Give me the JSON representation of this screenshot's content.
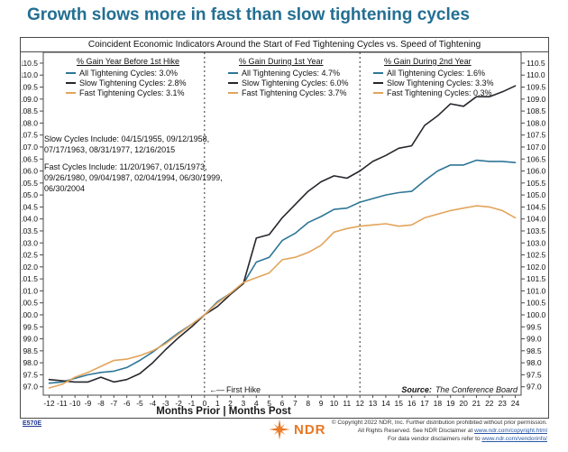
{
  "page": {
    "title": "Growth slows more in fast than slow tightening cycles"
  },
  "colors": {
    "title_teal": "#236f92",
    "all_line": "#2e7696",
    "slow_line": "#26262c",
    "fast_line": "#e2a45a",
    "logo_orange": "#e87722",
    "link_blue": "#2857a4"
  },
  "chart": {
    "subtitle": "Coincident Economic Indicators Around the Start of Fed Tightening Cycles vs. Speed of Tightening",
    "xlabel": "Months Prior | Months Post",
    "first_hike_arrow": "←—",
    "first_hike": "First Hike",
    "source_label": "Source:",
    "source_value": "The Conference Board",
    "annotations": {
      "slow_cycles": "Slow Cycles Include: 04/15/1955, 09/12/1958, 07/17/1963, 08/31/1977, 12/16/2015",
      "fast_cycles": "Fast Cycles Include: 11/20/1967, 01/15/1973, 09/26/1980, 09/04/1987, 02/04/1994, 06/30/1999, 06/30/2004"
    },
    "legends": [
      {
        "title": "% Gain Year Before 1st Hike",
        "entries": [
          {
            "label": "All Tightening Cycles: 3.0%",
            "color": "#2e7696"
          },
          {
            "label": "Slow Tightening Cycles: 2.8%",
            "color": "#26262c"
          },
          {
            "label": "Fast Tightening Cycles: 3.1%",
            "color": "#e2a45a"
          }
        ]
      },
      {
        "title": "% Gain During 1st Year",
        "entries": [
          {
            "label": "All Tightening Cycles: 4.7%",
            "color": "#2e7696"
          },
          {
            "label": "Slow Tightening Cycles: 6.0%",
            "color": "#26262c"
          },
          {
            "label": "Fast Tightening Cycles: 3.7%",
            "color": "#e2a45a"
          }
        ]
      },
      {
        "title": "% Gain During 2nd Year",
        "entries": [
          {
            "label": "All Tightening Cycles: 1.6%",
            "color": "#2e7696"
          },
          {
            "label": "Slow Tightening Cycles: 3.3%",
            "color": "#26262c"
          },
          {
            "label": "Fast Tightening Cycles: 0.3%",
            "color": "#e2a45a"
          }
        ]
      }
    ]
  },
  "chart_data": {
    "type": "line",
    "title": "Coincident Economic Indicators Around the Start of Fed Tightening Cycles vs. Speed of Tightening",
    "xlabel": "Months Prior | Months Post",
    "x": [
      -12,
      -11,
      -10,
      -9,
      -8,
      -7,
      -6,
      -5,
      -4,
      -3,
      -2,
      -1,
      0,
      1,
      2,
      3,
      4,
      5,
      6,
      7,
      8,
      9,
      10,
      11,
      12,
      13,
      14,
      15,
      16,
      17,
      18,
      19,
      20,
      21,
      22,
      23,
      24
    ],
    "series": [
      {
        "name": "All Tightening Cycles",
        "color": "#2e7696",
        "values": [
          97.15,
          97.2,
          97.35,
          97.5,
          97.6,
          97.65,
          97.8,
          98.1,
          98.45,
          98.85,
          99.25,
          99.6,
          100.0,
          100.55,
          100.9,
          101.3,
          102.2,
          102.4,
          103.1,
          103.4,
          103.85,
          104.1,
          104.4,
          104.45,
          104.7,
          104.85,
          105.0,
          105.1,
          105.15,
          105.6,
          106.0,
          106.25,
          106.25,
          106.45,
          106.4,
          106.4,
          106.35
        ]
      },
      {
        "name": "Slow Tightening Cycles",
        "color": "#26262c",
        "values": [
          97.3,
          97.25,
          97.2,
          97.2,
          97.4,
          97.2,
          97.3,
          97.55,
          98.0,
          98.55,
          99.05,
          99.5,
          100.0,
          100.35,
          100.85,
          101.3,
          103.2,
          103.35,
          104.05,
          104.6,
          105.15,
          105.55,
          105.8,
          105.7,
          106.0,
          106.4,
          106.65,
          106.95,
          107.05,
          107.9,
          108.3,
          108.8,
          108.7,
          109.1,
          109.1,
          109.3,
          109.55
        ]
      },
      {
        "name": "Fast Tightening Cycles",
        "color": "#e2a45a",
        "values": [
          96.95,
          97.1,
          97.4,
          97.6,
          97.85,
          98.1,
          98.15,
          98.3,
          98.5,
          98.8,
          99.2,
          99.6,
          100.0,
          100.5,
          100.9,
          101.35,
          101.55,
          101.75,
          102.3,
          102.4,
          102.6,
          102.9,
          103.45,
          103.6,
          103.7,
          103.75,
          103.8,
          103.7,
          103.75,
          104.05,
          104.2,
          104.35,
          104.45,
          104.55,
          104.5,
          104.35,
          104.05
        ]
      }
    ],
    "xlim": [
      -12.45,
      24.45
    ],
    "ylim": [
      96.65,
      110.95
    ],
    "yticks": {
      "min": 97.0,
      "max": 110.5,
      "step": 0.5
    },
    "xticks": {
      "min": -12,
      "max": 24,
      "step": 1
    },
    "vlines": [
      0,
      12
    ],
    "grid": false,
    "legend_position": "top-inside-three-columns",
    "y_axis_sides": "both"
  },
  "footer": {
    "chart_code": "E570E",
    "logo_text": "NDR",
    "copyright_line1": "© Copyright 2022 NDR, Inc. Further distribution prohibited without prior permission.",
    "copyright_line2_prefix": "All Rights Reserved. See NDR Disclaimer at ",
    "copyright_line2_link": "www.ndr.com/copyright.html",
    "copyright_line3_prefix": "For data vendor disclaimers refer to ",
    "copyright_line3_link": "www.ndr.com/vendorinfo/"
  }
}
